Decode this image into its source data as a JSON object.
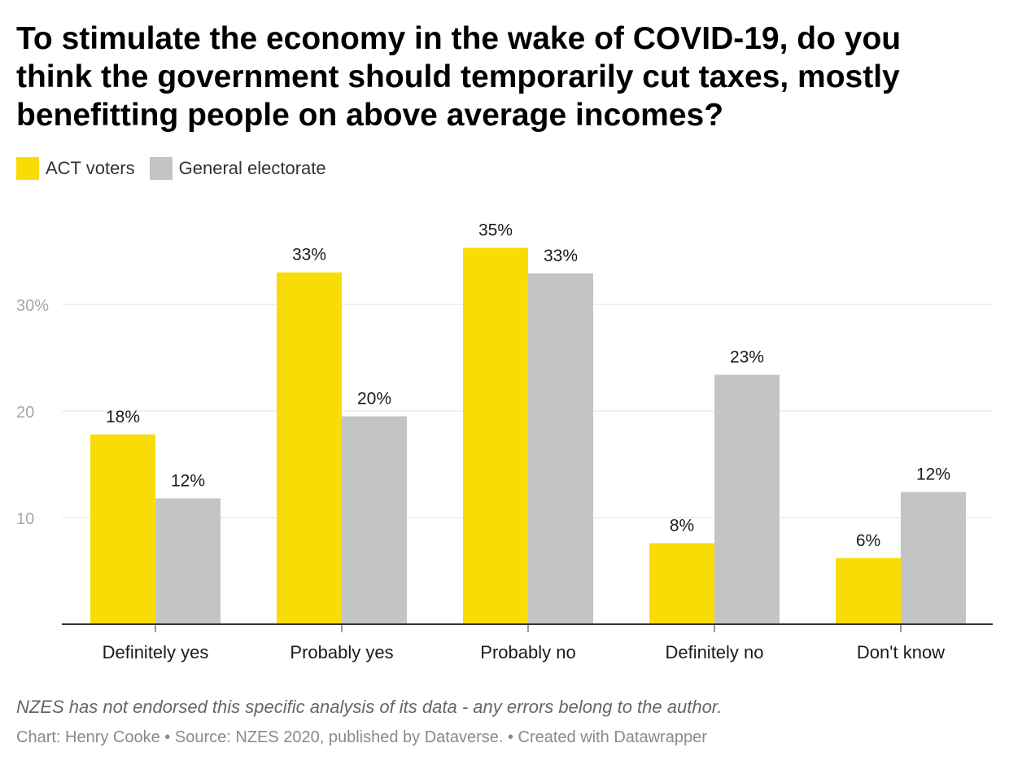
{
  "title": "To stimulate the economy in the wake of COVID-19, do you think the government should temporarily cut taxes, mostly benefitting people on above average incomes?",
  "note": "NZES has not endorsed this specific analysis of its data - any errors belong to the author.",
  "footer": "Chart: Henry Cooke • Source: NZES 2020, published by Dataverse. • Created with Datawrapper",
  "chart_data": {
    "type": "bar",
    "title": "To stimulate the economy in the wake of COVID-19, do you think the government should temporarily cut taxes, mostly benefitting people on above average incomes?",
    "categories": [
      "Definitely yes",
      "Probably yes",
      "Probably no",
      "Definitely no",
      "Don't know"
    ],
    "series": [
      {
        "name": "ACT voters",
        "color": "#f9dc06",
        "values": [
          17.8,
          33.0,
          35.3,
          7.6,
          6.2
        ],
        "labels": [
          "18%",
          "33%",
          "35%",
          "8%",
          "6%"
        ]
      },
      {
        "name": "General electorate",
        "color": "#c4c4c4",
        "values": [
          11.8,
          19.5,
          32.9,
          23.4,
          12.4
        ],
        "labels": [
          "12%",
          "20%",
          "33%",
          "23%",
          "12%"
        ]
      }
    ],
    "yticks": [
      10,
      20,
      30
    ],
    "ytick_labels": [
      "10",
      "20",
      "30%"
    ],
    "ylim": [
      0,
      37
    ],
    "grid": true,
    "legend_position": "top-left",
    "xlabel": "",
    "ylabel": ""
  }
}
